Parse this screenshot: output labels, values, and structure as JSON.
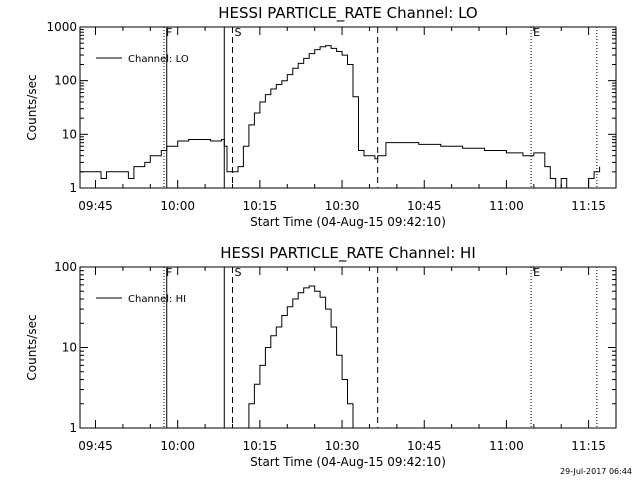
{
  "footer_timestamp": "29-Jul-2017 06:44",
  "chart_data": [
    {
      "type": "line",
      "title": "HESSI PARTICLE_RATE Channel: LO",
      "xlabel": "Start Time (04-Aug-15 09:42:10)",
      "ylabel": "Counts/sec",
      "y_scale": "log",
      "ylim": [
        1,
        1000
      ],
      "y_ticks": [
        "1",
        "10",
        "100",
        "1000"
      ],
      "xlim": [
        "09:42:10",
        "11:20:00"
      ],
      "x_ticks": [
        "09:45",
        "10:00",
        "10:15",
        "10:30",
        "10:45",
        "11:00",
        "11:15"
      ],
      "grid": false,
      "legend_position": "top-left",
      "series": [
        {
          "name": "Channel: LO",
          "x": [
            "09:42:10",
            "09:43:00",
            "09:44:00",
            "09:45:00",
            "09:46:00",
            "09:47:00",
            "09:48:00",
            "09:49:00",
            "09:50:00",
            "09:51:00",
            "09:52:00",
            "09:53:00",
            "09:54:00",
            "09:55:00",
            "09:56:00",
            "09:57:00",
            "09:58:00",
            "10:00:00",
            "10:02:00",
            "10:04:00",
            "10:06:00",
            "10:07:00",
            "10:08:00",
            "10:08:30",
            "10:09:00",
            "10:10:00",
            "10:11:00",
            "10:12:00",
            "10:13:00",
            "10:14:00",
            "10:15:00",
            "10:16:00",
            "10:17:00",
            "10:18:00",
            "10:19:00",
            "10:20:00",
            "10:21:00",
            "10:22:00",
            "10:23:00",
            "10:24:00",
            "10:25:00",
            "10:26:00",
            "10:27:00",
            "10:28:00",
            "10:29:00",
            "10:30:00",
            "10:31:00",
            "10:32:00",
            "10:33:00",
            "10:34:00",
            "10:35:00",
            "10:36:00",
            "10:36:30",
            "10:38:00",
            "10:40:00",
            "10:44:00",
            "10:48:00",
            "10:52:00",
            "10:56:00",
            "11:00:00",
            "11:03:00",
            "11:05:00",
            "11:07:00",
            "11:08:00",
            "11:09:00",
            "11:10:00",
            "11:11:00",
            "11:12:00",
            "11:13:00",
            "11:14:00",
            "11:15:00",
            "11:16:00",
            "11:17:00"
          ],
          "values": [
            2,
            2,
            2,
            2,
            1.5,
            2,
            2,
            2,
            2,
            1.5,
            2.5,
            2.5,
            3,
            4,
            4,
            5,
            6,
            7.5,
            8,
            8,
            7.5,
            7.5,
            8,
            6,
            2,
            2,
            2.5,
            6,
            15,
            25,
            40,
            55,
            70,
            85,
            100,
            130,
            170,
            210,
            260,
            320,
            380,
            430,
            450,
            400,
            350,
            300,
            200,
            50,
            5,
            4,
            4,
            3.5,
            4,
            7,
            7,
            6.5,
            6,
            5.5,
            5,
            4.5,
            4,
            4.5,
            2.5,
            1.5,
            1,
            1.5,
            1,
            1,
            1,
            1,
            1.5,
            2,
            2.5
          ]
        }
      ],
      "markers": [
        {
          "label": "F",
          "time": "09:57:30",
          "style": "dotted"
        },
        {
          "label": "",
          "time": "09:58:00",
          "style": "solid"
        },
        {
          "label": "",
          "time": "10:08:30",
          "style": "solid"
        },
        {
          "label": "S",
          "time": "10:10:00",
          "style": "dashed"
        },
        {
          "label": "",
          "time": "10:36:30",
          "style": "dashed"
        },
        {
          "label": "E",
          "time": "11:04:30",
          "style": "dotted"
        },
        {
          "label": "",
          "time": "11:16:30",
          "style": "dotted"
        }
      ]
    },
    {
      "type": "line",
      "title": "HESSI PARTICLE_RATE Channel: HI",
      "xlabel": "Start Time (04-Aug-15 09:42:10)",
      "ylabel": "Counts/sec",
      "y_scale": "log",
      "ylim": [
        1,
        100
      ],
      "y_ticks": [
        "1",
        "10",
        "100"
      ],
      "xlim": [
        "09:42:10",
        "11:20:00"
      ],
      "x_ticks": [
        "09:45",
        "10:00",
        "10:15",
        "10:30",
        "10:45",
        "11:00",
        "11:15"
      ],
      "grid": false,
      "legend_position": "top-left",
      "series": [
        {
          "name": "Channel: HI",
          "x": [
            "10:12:00",
            "10:13:00",
            "10:14:00",
            "10:15:00",
            "10:16:00",
            "10:17:00",
            "10:18:00",
            "10:19:00",
            "10:20:00",
            "10:21:00",
            "10:22:00",
            "10:23:00",
            "10:24:00",
            "10:25:00",
            "10:26:00",
            "10:27:00",
            "10:28:00",
            "10:29:00",
            "10:30:00",
            "10:31:00",
            "10:32:00"
          ],
          "values": [
            1,
            2,
            3.5,
            6,
            10,
            14,
            18,
            25,
            32,
            40,
            48,
            55,
            58,
            50,
            42,
            30,
            18,
            8,
            4,
            2,
            1
          ]
        }
      ],
      "markers": [
        {
          "label": "F",
          "time": "09:57:30",
          "style": "dotted"
        },
        {
          "label": "",
          "time": "09:58:00",
          "style": "solid"
        },
        {
          "label": "",
          "time": "10:08:30",
          "style": "solid"
        },
        {
          "label": "S",
          "time": "10:10:00",
          "style": "dashed"
        },
        {
          "label": "",
          "time": "10:36:30",
          "style": "dashed"
        },
        {
          "label": "E",
          "time": "11:04:30",
          "style": "dotted"
        },
        {
          "label": "",
          "time": "11:16:30",
          "style": "dotted"
        }
      ]
    }
  ]
}
